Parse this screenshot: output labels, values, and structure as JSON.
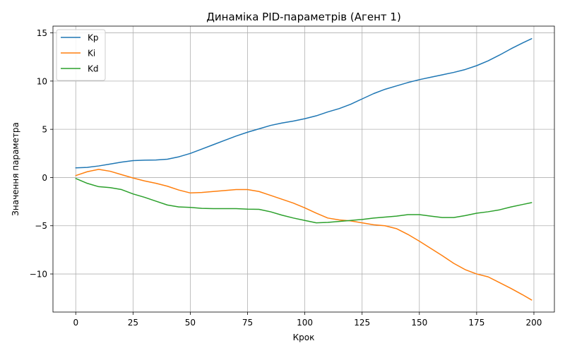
{
  "chart_data": {
    "type": "line",
    "title": "Динаміка PID-параметрів (Агент 1)",
    "xlabel": "Крок",
    "ylabel": "Значення параметра",
    "xlim": [
      -9.95,
      208.95
    ],
    "ylim": [
      -13.95,
      15.7
    ],
    "xticks": [
      0,
      25,
      50,
      75,
      100,
      125,
      150,
      175,
      200
    ],
    "yticks": [
      -10,
      -5,
      0,
      5,
      10,
      15
    ],
    "grid": true,
    "legend": "top-left",
    "series": [
      {
        "name": "Kp",
        "color": "#1f77b4",
        "points": [
          [
            0,
            1.0
          ],
          [
            5,
            1.05
          ],
          [
            10,
            1.2
          ],
          [
            15,
            1.4
          ],
          [
            20,
            1.6
          ],
          [
            25,
            1.75
          ],
          [
            30,
            1.8
          ],
          [
            35,
            1.82
          ],
          [
            40,
            1.9
          ],
          [
            45,
            2.15
          ],
          [
            50,
            2.5
          ],
          [
            55,
            2.95
          ],
          [
            60,
            3.4
          ],
          [
            65,
            3.85
          ],
          [
            70,
            4.3
          ],
          [
            75,
            4.7
          ],
          [
            80,
            5.05
          ],
          [
            85,
            5.4
          ],
          [
            90,
            5.65
          ],
          [
            95,
            5.85
          ],
          [
            100,
            6.1
          ],
          [
            105,
            6.4
          ],
          [
            110,
            6.8
          ],
          [
            115,
            7.15
          ],
          [
            120,
            7.6
          ],
          [
            125,
            8.15
          ],
          [
            130,
            8.7
          ],
          [
            135,
            9.15
          ],
          [
            140,
            9.5
          ],
          [
            145,
            9.85
          ],
          [
            150,
            10.15
          ],
          [
            155,
            10.4
          ],
          [
            160,
            10.65
          ],
          [
            165,
            10.9
          ],
          [
            170,
            11.2
          ],
          [
            175,
            11.6
          ],
          [
            180,
            12.1
          ],
          [
            185,
            12.7
          ],
          [
            190,
            13.35
          ],
          [
            195,
            13.95
          ],
          [
            199,
            14.4
          ]
        ]
      },
      {
        "name": "Ki",
        "color": "#ff7f0e",
        "points": [
          [
            0,
            0.2
          ],
          [
            5,
            0.6
          ],
          [
            10,
            0.85
          ],
          [
            15,
            0.65
          ],
          [
            20,
            0.3
          ],
          [
            25,
            -0.05
          ],
          [
            30,
            -0.35
          ],
          [
            35,
            -0.6
          ],
          [
            40,
            -0.9
          ],
          [
            45,
            -1.3
          ],
          [
            50,
            -1.6
          ],
          [
            55,
            -1.55
          ],
          [
            60,
            -1.45
          ],
          [
            65,
            -1.35
          ],
          [
            70,
            -1.25
          ],
          [
            75,
            -1.25
          ],
          [
            80,
            -1.45
          ],
          [
            85,
            -1.85
          ],
          [
            90,
            -2.25
          ],
          [
            95,
            -2.65
          ],
          [
            100,
            -3.15
          ],
          [
            105,
            -3.7
          ],
          [
            110,
            -4.2
          ],
          [
            115,
            -4.4
          ],
          [
            120,
            -4.5
          ],
          [
            125,
            -4.7
          ],
          [
            130,
            -4.9
          ],
          [
            135,
            -5.0
          ],
          [
            140,
            -5.3
          ],
          [
            145,
            -5.9
          ],
          [
            150,
            -6.6
          ],
          [
            155,
            -7.35
          ],
          [
            160,
            -8.1
          ],
          [
            165,
            -8.9
          ],
          [
            170,
            -9.55
          ],
          [
            175,
            -10.0
          ],
          [
            180,
            -10.3
          ],
          [
            185,
            -10.9
          ],
          [
            190,
            -11.5
          ],
          [
            195,
            -12.15
          ],
          [
            199,
            -12.7
          ]
        ]
      },
      {
        "name": "Kd",
        "color": "#2ca02c",
        "points": [
          [
            0,
            -0.1
          ],
          [
            5,
            -0.6
          ],
          [
            10,
            -0.95
          ],
          [
            15,
            -1.05
          ],
          [
            20,
            -1.25
          ],
          [
            25,
            -1.7
          ],
          [
            30,
            -2.05
          ],
          [
            35,
            -2.45
          ],
          [
            40,
            -2.85
          ],
          [
            45,
            -3.05
          ],
          [
            50,
            -3.1
          ],
          [
            55,
            -3.2
          ],
          [
            60,
            -3.22
          ],
          [
            65,
            -3.22
          ],
          [
            70,
            -3.22
          ],
          [
            75,
            -3.28
          ],
          [
            80,
            -3.3
          ],
          [
            85,
            -3.55
          ],
          [
            90,
            -3.9
          ],
          [
            95,
            -4.2
          ],
          [
            100,
            -4.45
          ],
          [
            105,
            -4.7
          ],
          [
            110,
            -4.65
          ],
          [
            115,
            -4.55
          ],
          [
            120,
            -4.45
          ],
          [
            125,
            -4.35
          ],
          [
            130,
            -4.2
          ],
          [
            135,
            -4.1
          ],
          [
            140,
            -4.0
          ],
          [
            145,
            -3.85
          ],
          [
            150,
            -3.85
          ],
          [
            155,
            -4.0
          ],
          [
            160,
            -4.15
          ],
          [
            165,
            -4.15
          ],
          [
            170,
            -3.95
          ],
          [
            175,
            -3.7
          ],
          [
            180,
            -3.55
          ],
          [
            185,
            -3.35
          ],
          [
            190,
            -3.05
          ],
          [
            195,
            -2.8
          ],
          [
            199,
            -2.6
          ]
        ]
      }
    ]
  }
}
